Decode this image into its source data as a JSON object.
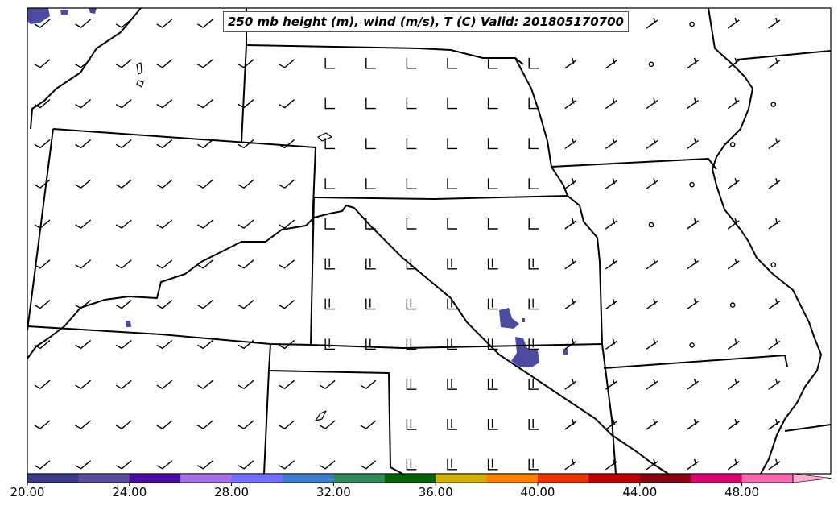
{
  "map": {
    "title": "250 mb height (m), wind (m/s), T (C) Valid: 201805170700",
    "background": "#ffffff",
    "boundary_color": "#000000",
    "highlight_color": "#4b4ba0"
  },
  "colorbar": {
    "colors": [
      "#3a3a8c",
      "#5a4aa0",
      "#4b0aa8",
      "#a770e8",
      "#7070ff",
      "#3a7ccc",
      "#2e8b57",
      "#006400",
      "#d4b000",
      "#ff8000",
      "#ee3300",
      "#c00000",
      "#8b0010",
      "#e0006e",
      "#ff66b0",
      "#ffaad0"
    ],
    "tick_labels": [
      "20.00",
      "24.00",
      "28.00",
      "32.00",
      "36.00",
      "40.00",
      "44.00",
      "48.00"
    ]
  }
}
